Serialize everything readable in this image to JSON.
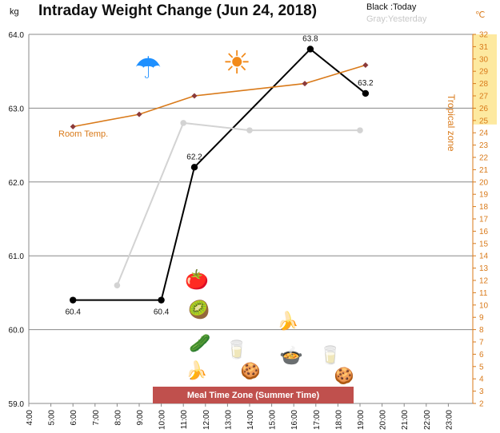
{
  "title": "Intraday Weight Change (Jun 24, 2018)",
  "unit_left": "kg",
  "unit_right": "℃",
  "legend": {
    "today": "Black :Today",
    "yesterday": "Gray:Yesterday"
  },
  "labels": {
    "tropical_zone": "Tropical zone",
    "room_temp": "Room Temp.",
    "meal_zone": "Meal Time Zone  (Summer Time)"
  },
  "icons": [
    "umbrella-icon",
    "sun-icon",
    "tomato-icon",
    "kiwi-icon",
    "cucumber-icon",
    "banana-icon",
    "water-glass-icon",
    "cookies-icon",
    "banana-icon",
    "soup-icon",
    "water-glass-icon",
    "cookies-icon"
  ],
  "colors": {
    "today": "#000000",
    "yesterday": "#d3d3d3",
    "room_temp": "#d97a1a",
    "tropical": "#fde9a0",
    "meal_bar": "#c0504d"
  },
  "chart_data": {
    "type": "line",
    "x_ticks": [
      "4:00",
      "5:00",
      "6:00",
      "7:00",
      "8:00",
      "9:00",
      "10:00",
      "11:00",
      "12:00",
      "13:00",
      "14:00",
      "15:00",
      "16:00",
      "17:00",
      "18:00",
      "19:00",
      "20:00",
      "21:00",
      "22:00",
      "23:00"
    ],
    "y_left": {
      "label": "kg",
      "lim": [
        59.0,
        64.0
      ],
      "ticks": [
        "59.0",
        "60.0",
        "61.0",
        "62.0",
        "63.0",
        "64.0"
      ]
    },
    "y_right": {
      "label": "℃",
      "lim": [
        2,
        32
      ],
      "ticks": [
        "2",
        "3",
        "4",
        "5",
        "6",
        "7",
        "8",
        "9",
        "10",
        "11",
        "12",
        "13",
        "14",
        "15",
        "16",
        "17",
        "18",
        "19",
        "20",
        "21",
        "22",
        "23",
        "24",
        "25",
        "26",
        "27",
        "28",
        "29",
        "30",
        "31",
        "32"
      ],
      "tropical_from": 25
    },
    "series": [
      {
        "name": "Today",
        "axis": "left",
        "color": "#000000",
        "x": [
          "6:00",
          "10:00",
          "11:30",
          "16:45",
          "19:15"
        ],
        "y": [
          60.4,
          60.4,
          62.2,
          63.8,
          63.2
        ],
        "labels": [
          "60.4",
          "60.4",
          "62.2",
          "63.8",
          "63.2"
        ],
        "show_end_label": [
          true,
          true,
          true,
          true,
          true
        ]
      },
      {
        "name": "Yesterday",
        "axis": "left",
        "color": "#d3d3d3",
        "x": [
          "8:00",
          "11:00",
          "14:00",
          "19:00"
        ],
        "y": [
          60.6,
          62.8,
          62.7,
          62.7
        ]
      },
      {
        "name": "Room Temp.",
        "axis": "right",
        "color": "#d97a1a",
        "x": [
          "6:00",
          "9:00",
          "11:30",
          "16:30",
          "19:15"
        ],
        "y": [
          24.5,
          25.5,
          27,
          28,
          29.5
        ]
      }
    ]
  }
}
